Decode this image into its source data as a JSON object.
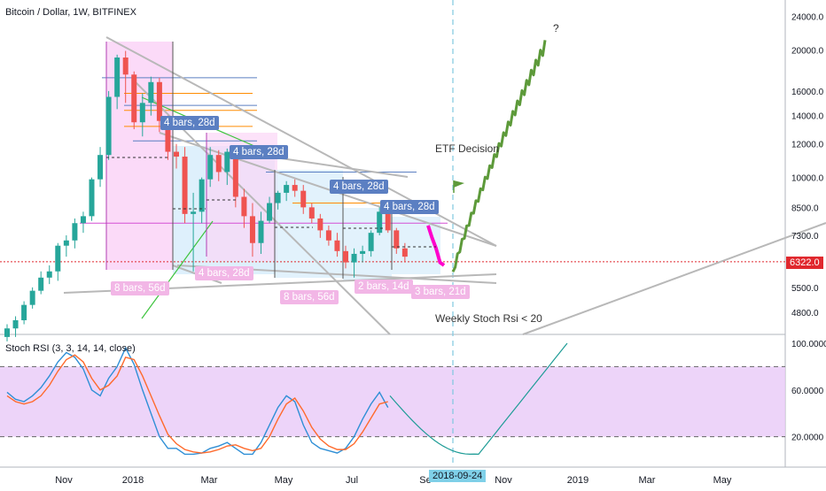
{
  "header": {
    "symbol_title": "Bitcoin / Dollar, 1W, BITFINEX",
    "oscillator_title": "Stoch RSI (3, 3, 14, 14, close)"
  },
  "annotations": {
    "blue_boxes": [
      "4 bars, 28d",
      "4 bars, 28d",
      "4 bars, 28d",
      "4 bars, 28d"
    ],
    "pink_boxes": [
      "8 bars, 56d",
      "4 bars, 28d",
      "8 bars, 56d",
      "2 bars, 14d",
      "3 bars, 21d"
    ],
    "etf": "ETF Decision",
    "stoch_note": "Weekly Stoch Rsi < 20",
    "question": "?"
  },
  "current_price": "6322.0",
  "crosshair_date": "2018-09-24",
  "colors": {
    "up": "#26a69a",
    "down": "#ef5350",
    "projection": "#5d9a3a",
    "pink_path": "#ff00cc",
    "shade_pink": "#fbd6f7",
    "shade_blue": "#d6ecfb",
    "osc_bg": "#e8c9f8",
    "k_line": "#2f8fd6",
    "d_line": "#ff6a2c",
    "price_line": "#e0282e"
  },
  "chart_data": [
    {
      "type": "candlestick",
      "title": "Bitcoin / Dollar, 1W, BITFINEX",
      "scale": "log",
      "ylim": [
        4300,
        26000
      ],
      "y_ticks": [
        "24000.0",
        "20000.0",
        "16000.0",
        "14000.0",
        "12000.0",
        "10000.0",
        "8500.0",
        "7300.0",
        "6322.0",
        "5500.0",
        "4800.0"
      ],
      "x_ticks": [
        "Nov",
        "2018",
        "Mar",
        "May",
        "Jul",
        "Se",
        "Nov",
        "2019",
        "Mar",
        "May"
      ],
      "bars": [
        {
          "o": 4200,
          "h": 4500,
          "l": 4100,
          "c": 4400
        },
        {
          "o": 4400,
          "h": 4700,
          "l": 4200,
          "c": 4600
        },
        {
          "o": 4600,
          "h": 5100,
          "l": 4500,
          "c": 5000
        },
        {
          "o": 5000,
          "h": 5500,
          "l": 4900,
          "c": 5400
        },
        {
          "o": 5400,
          "h": 6000,
          "l": 5300,
          "c": 5800
        },
        {
          "o": 5800,
          "h": 6200,
          "l": 5600,
          "c": 6000
        },
        {
          "o": 6000,
          "h": 7000,
          "l": 5700,
          "c": 6900
        },
        {
          "o": 6900,
          "h": 7300,
          "l": 6500,
          "c": 7100
        },
        {
          "o": 7100,
          "h": 8000,
          "l": 6800,
          "c": 7800
        },
        {
          "o": 7800,
          "h": 8300,
          "l": 7400,
          "c": 8100
        },
        {
          "o": 8100,
          "h": 10000,
          "l": 7900,
          "c": 9900
        },
        {
          "o": 9900,
          "h": 11800,
          "l": 9500,
          "c": 11300
        },
        {
          "o": 11300,
          "h": 16000,
          "l": 11000,
          "c": 15500
        },
        {
          "o": 15500,
          "h": 19500,
          "l": 14500,
          "c": 19200
        },
        {
          "o": 19200,
          "h": 19900,
          "l": 15000,
          "c": 17500
        },
        {
          "o": 17500,
          "h": 17800,
          "l": 13000,
          "c": 13500
        },
        {
          "o": 13500,
          "h": 15800,
          "l": 12500,
          "c": 15000
        },
        {
          "o": 15000,
          "h": 17300,
          "l": 14000,
          "c": 16800
        },
        {
          "o": 16800,
          "h": 17200,
          "l": 12800,
          "c": 13600
        },
        {
          "o": 13600,
          "h": 14000,
          "l": 11000,
          "c": 11500
        },
        {
          "o": 11500,
          "h": 12000,
          "l": 10500,
          "c": 11200
        },
        {
          "o": 11200,
          "h": 11800,
          "l": 7800,
          "c": 8200
        },
        {
          "o": 8200,
          "h": 9200,
          "l": 6000,
          "c": 8300
        },
        {
          "o": 8300,
          "h": 10000,
          "l": 7800,
          "c": 9900
        },
        {
          "o": 9900,
          "h": 11800,
          "l": 9500,
          "c": 11300
        },
        {
          "o": 11300,
          "h": 11600,
          "l": 9800,
          "c": 10300
        },
        {
          "o": 10300,
          "h": 11700,
          "l": 9600,
          "c": 11500
        },
        {
          "o": 11500,
          "h": 11600,
          "l": 8500,
          "c": 9000
        },
        {
          "o": 9000,
          "h": 9400,
          "l": 7600,
          "c": 8100
        },
        {
          "o": 8100,
          "h": 8700,
          "l": 6500,
          "c": 7000
        },
        {
          "o": 7000,
          "h": 8300,
          "l": 6600,
          "c": 7900
        },
        {
          "o": 7900,
          "h": 9000,
          "l": 7800,
          "c": 8700
        },
        {
          "o": 8700,
          "h": 9300,
          "l": 8400,
          "c": 9200
        },
        {
          "o": 9200,
          "h": 9800,
          "l": 8800,
          "c": 9600
        },
        {
          "o": 9600,
          "h": 9900,
          "l": 9000,
          "c": 9300
        },
        {
          "o": 9300,
          "h": 9600,
          "l": 8200,
          "c": 8500
        },
        {
          "o": 8500,
          "h": 8700,
          "l": 7800,
          "c": 8000
        },
        {
          "o": 8000,
          "h": 8200,
          "l": 7200,
          "c": 7500
        },
        {
          "o": 7500,
          "h": 7700,
          "l": 6900,
          "c": 7100
        },
        {
          "o": 7100,
          "h": 7400,
          "l": 6500,
          "c": 6700
        },
        {
          "o": 6700,
          "h": 6900,
          "l": 6100,
          "c": 6300
        },
        {
          "o": 6300,
          "h": 6800,
          "l": 5800,
          "c": 6600
        },
        {
          "o": 6600,
          "h": 6900,
          "l": 6300,
          "c": 6700
        },
        {
          "o": 6700,
          "h": 7500,
          "l": 6500,
          "c": 7400
        },
        {
          "o": 7400,
          "h": 8500,
          "l": 7300,
          "c": 8300
        },
        {
          "o": 8300,
          "h": 8400,
          "l": 7400,
          "c": 7500
        },
        {
          "o": 7500,
          "h": 7600,
          "l": 6600,
          "c": 6800
        },
        {
          "o": 6800,
          "h": 7000,
          "l": 6300,
          "c": 6500
        }
      ],
      "pink_projection": [
        7700,
        7200,
        6800,
        6300,
        6200
      ],
      "green_projection_start": 5900,
      "green_projection_end": 20500
    },
    {
      "type": "line",
      "title": "Stoch RSI (3, 3, 14, 14, close)",
      "ylim": [
        0,
        100
      ],
      "y_ticks": [
        "100.0000",
        "60.0000",
        "20.0000"
      ],
      "series": [
        {
          "values": [
            58,
            52,
            50,
            55,
            62,
            72,
            84,
            92,
            88,
            78,
            60,
            55,
            70,
            80,
            96,
            82,
            60,
            40,
            20,
            10,
            10,
            5,
            5,
            6,
            10,
            12,
            15,
            10,
            5,
            5,
            15,
            30,
            45,
            55,
            50,
            30,
            15,
            10,
            8,
            6,
            10,
            20,
            35,
            48,
            58,
            45
          ]
        },
        {
          "values": [
            55,
            50,
            48,
            50,
            55,
            64,
            76,
            86,
            90,
            84,
            70,
            60,
            64,
            72,
            88,
            86,
            72,
            55,
            38,
            22,
            14,
            9,
            7,
            6,
            7,
            9,
            12,
            13,
            10,
            8,
            10,
            20,
            35,
            48,
            53,
            42,
            28,
            18,
            12,
            9,
            9,
            14,
            24,
            36,
            48,
            50
          ]
        }
      ]
    }
  ]
}
